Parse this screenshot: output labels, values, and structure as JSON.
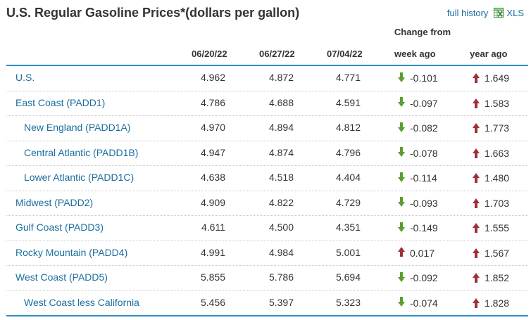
{
  "title": "U.S. Regular Gasoline Prices*(dollars per gallon)",
  "links": {
    "full_history": "full history",
    "xls": "XLS"
  },
  "headers": {
    "change_from": "Change from",
    "d1": "06/20/22",
    "d2": "06/27/22",
    "d3": "07/04/22",
    "week_ago": "week ago",
    "year_ago": "year ago"
  },
  "colors": {
    "down": "#5a9e2e",
    "up": "#a0303a",
    "link": "#1a6e9e",
    "rule": "#2b8ec7"
  },
  "rows": [
    {
      "name": "U.S.",
      "sub": false,
      "d1": "4.962",
      "d2": "4.872",
      "d3": "4.771",
      "week": "-0.101",
      "week_dir": "down",
      "year": "1.649",
      "year_dir": "up"
    },
    {
      "name": "East Coast (PADD1)",
      "sub": false,
      "d1": "4.786",
      "d2": "4.688",
      "d3": "4.591",
      "week": "-0.097",
      "week_dir": "down",
      "year": "1.583",
      "year_dir": "up"
    },
    {
      "name": "New England (PADD1A)",
      "sub": true,
      "d1": "4.970",
      "d2": "4.894",
      "d3": "4.812",
      "week": "-0.082",
      "week_dir": "down",
      "year": "1.773",
      "year_dir": "up"
    },
    {
      "name": "Central Atlantic (PADD1B)",
      "sub": true,
      "d1": "4.947",
      "d2": "4.874",
      "d3": "4.796",
      "week": "-0.078",
      "week_dir": "down",
      "year": "1.663",
      "year_dir": "up"
    },
    {
      "name": "Lower Atlantic (PADD1C)",
      "sub": true,
      "d1": "4.638",
      "d2": "4.518",
      "d3": "4.404",
      "week": "-0.114",
      "week_dir": "down",
      "year": "1.480",
      "year_dir": "up"
    },
    {
      "name": "Midwest (PADD2)",
      "sub": false,
      "d1": "4.909",
      "d2": "4.822",
      "d3": "4.729",
      "week": "-0.093",
      "week_dir": "down",
      "year": "1.703",
      "year_dir": "up"
    },
    {
      "name": "Gulf Coast (PADD3)",
      "sub": false,
      "d1": "4.611",
      "d2": "4.500",
      "d3": "4.351",
      "week": "-0.149",
      "week_dir": "down",
      "year": "1.555",
      "year_dir": "up"
    },
    {
      "name": "Rocky Mountain (PADD4)",
      "sub": false,
      "d1": "4.991",
      "d2": "4.984",
      "d3": "5.001",
      "week": "0.017",
      "week_dir": "up",
      "year": "1.567",
      "year_dir": "up"
    },
    {
      "name": "West Coast (PADD5)",
      "sub": false,
      "d1": "5.855",
      "d2": "5.786",
      "d3": "5.694",
      "week": "-0.092",
      "week_dir": "down",
      "year": "1.852",
      "year_dir": "up"
    },
    {
      "name": "West Coast less California",
      "sub": true,
      "d1": "5.456",
      "d2": "5.397",
      "d3": "5.323",
      "week": "-0.074",
      "week_dir": "down",
      "year": "1.828",
      "year_dir": "up"
    }
  ]
}
